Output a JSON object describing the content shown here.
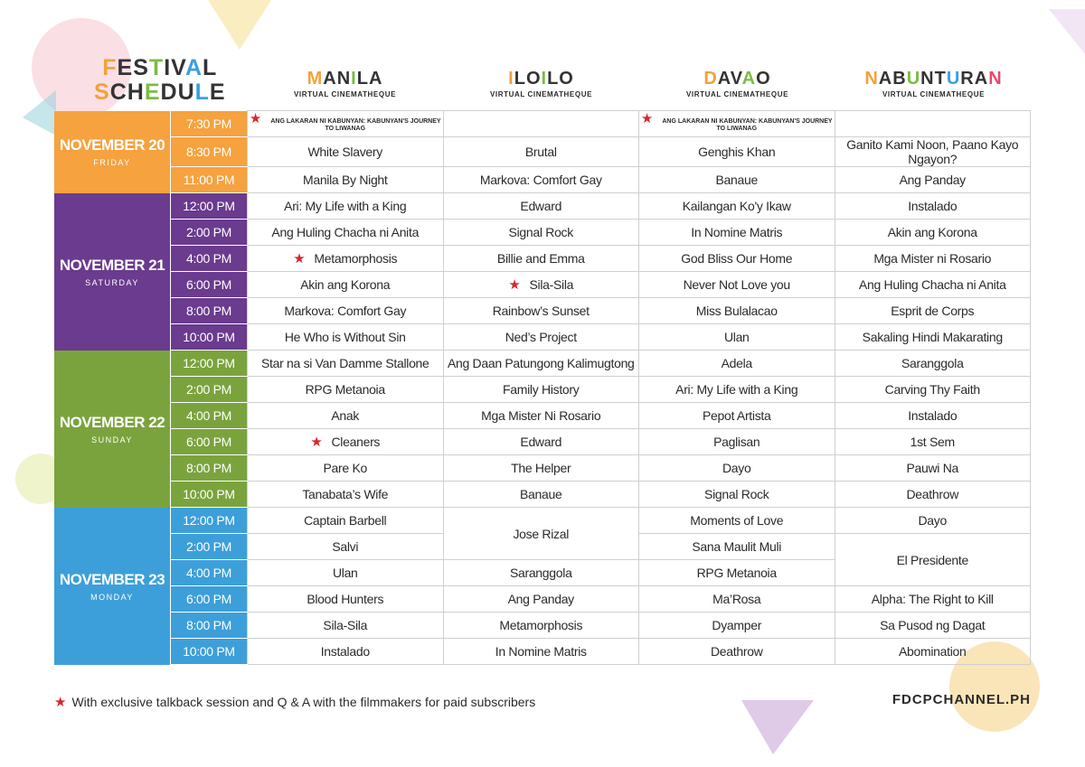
{
  "header": {
    "title": [
      "FESTIVAL",
      "SCHEDULE"
    ],
    "title_colors": [
      "#f2a23a",
      "#7dbb45",
      "#3aa0dc",
      "#e64a6e",
      "#8a4fa3"
    ],
    "venues": [
      {
        "name": "MANILA",
        "subtitle": "VIRTUAL CINEMATHEQUE"
      },
      {
        "name": "ILOILO",
        "subtitle": "VIRTUAL CINEMATHEQUE"
      },
      {
        "name": "DAVAO",
        "subtitle": "VIRTUAL CINEMATHEQUE"
      },
      {
        "name": "NABUNTURAN",
        "subtitle": "VIRTUAL CINEMATHEQUE"
      }
    ]
  },
  "days": [
    {
      "date": "NOVEMBER 20",
      "weekday": "FRIDAY",
      "color": "#f5a23f",
      "slots": [
        {
          "time": "7:30 PM",
          "cells": [
            {
              "title": "ANG LAKARAN NI KABUNYAN: KABUNYAN'S JOURNEY TO LIWANAG",
              "star": true,
              "small": true
            },
            null,
            {
              "title": "ANG LAKARAN NI KABUNYAN: KABUNYAN'S JOURNEY TO LIWANAG",
              "star": true,
              "small": true
            },
            null
          ]
        },
        {
          "time": "8:30 PM",
          "cells": [
            {
              "title": "White Slavery"
            },
            {
              "title": "Brutal"
            },
            {
              "title": "Genghis Khan"
            },
            {
              "title": "Ganito Kami Noon, Paano Kayo Ngayon?",
              "small": false
            }
          ]
        },
        {
          "time": "11:00 PM",
          "cells": [
            {
              "title": "Manila By Night"
            },
            {
              "title": "Markova: Comfort Gay"
            },
            {
              "title": "Banaue"
            },
            {
              "title": "Ang Panday"
            }
          ]
        }
      ]
    },
    {
      "date": "NOVEMBER 21",
      "weekday": "SATURDAY",
      "color": "#6a3b8e",
      "slots": [
        {
          "time": "12:00 PM",
          "cells": [
            {
              "title": "Ari: My Life with a King"
            },
            {
              "title": "Edward"
            },
            {
              "title": "Kailangan Ko'y Ikaw"
            },
            {
              "title": "Instalado"
            }
          ]
        },
        {
          "time": "2:00 PM",
          "cells": [
            {
              "title": "Ang Huling Chacha ni Anita"
            },
            {
              "title": "Signal Rock"
            },
            {
              "title": "In Nomine Matris"
            },
            {
              "title": "Akin ang Korona"
            }
          ]
        },
        {
          "time": "4:00 PM",
          "cells": [
            {
              "title": "Metamorphosis",
              "star": true
            },
            {
              "title": "Billie and Emma"
            },
            {
              "title": "God Bliss Our Home"
            },
            {
              "title": "Mga Mister ni Rosario"
            }
          ]
        },
        {
          "time": "6:00 PM",
          "cells": [
            {
              "title": "Akin ang Korona"
            },
            {
              "title": "Sila-Sila",
              "star": true
            },
            {
              "title": "Never Not Love you"
            },
            {
              "title": "Ang Huling Chacha ni Anita"
            }
          ]
        },
        {
          "time": "8:00 PM",
          "cells": [
            {
              "title": "Markova: Comfort Gay"
            },
            {
              "title": "Rainbow’s Sunset"
            },
            {
              "title": "Miss Bulalacao"
            },
            {
              "title": "Esprit de Corps"
            }
          ]
        },
        {
          "time": "10:00 PM",
          "cells": [
            {
              "title": "He Who is Without Sin"
            },
            {
              "title": "Ned’s Project"
            },
            {
              "title": "Ulan"
            },
            {
              "title": "Sakaling Hindi Makarating"
            }
          ]
        }
      ]
    },
    {
      "date": "NOVEMBER 22",
      "weekday": "SUNDAY",
      "color": "#7ba33d",
      "slots": [
        {
          "time": "12:00 PM",
          "cells": [
            {
              "title": "Star na si Van Damme Stallone"
            },
            {
              "title": "Ang Daan Patungong Kalimugtong"
            },
            {
              "title": "Adela"
            },
            {
              "title": "Saranggola"
            }
          ]
        },
        {
          "time": "2:00 PM",
          "cells": [
            {
              "title": "RPG Metanoia"
            },
            {
              "title": "Family History"
            },
            {
              "title": "Ari: My Life with a King"
            },
            {
              "title": "Carving Thy Faith"
            }
          ]
        },
        {
          "time": "4:00 PM",
          "cells": [
            {
              "title": "Anak"
            },
            {
              "title": "Mga Mister Ni Rosario"
            },
            {
              "title": "Pepot Artista"
            },
            {
              "title": "Instalado"
            }
          ]
        },
        {
          "time": "6:00 PM",
          "cells": [
            {
              "title": "Cleaners",
              "star": true
            },
            {
              "title": "Edward"
            },
            {
              "title": "Paglisan"
            },
            {
              "title": "1st Sem"
            }
          ]
        },
        {
          "time": "8:00 PM",
          "cells": [
            {
              "title": "Pare Ko"
            },
            {
              "title": "The Helper"
            },
            {
              "title": "Dayo"
            },
            {
              "title": "Pauwi Na"
            }
          ]
        },
        {
          "time": "10:00 PM",
          "cells": [
            {
              "title": "Tanabata’s Wife"
            },
            {
              "title": "Banaue"
            },
            {
              "title": "Signal Rock"
            },
            {
              "title": "Deathrow"
            }
          ]
        }
      ]
    },
    {
      "date": "NOVEMBER 23",
      "weekday": "MONDAY",
      "color": "#3d9fd9",
      "slots": [
        {
          "time": "12:00 PM",
          "cells": [
            {
              "title": "Captain Barbell"
            },
            {
              "title": "Jose Rizal",
              "rows": 2
            },
            {
              "title": "Moments of Love"
            },
            {
              "title": "Dayo"
            }
          ]
        },
        {
          "time": "2:00 PM",
          "cells": [
            {
              "title": "Salvi"
            },
            null,
            {
              "title": "Sana Maulit Muli"
            },
            {
              "title": "El Presidente",
              "rows": 2
            }
          ]
        },
        {
          "time": "4:00 PM",
          "cells": [
            {
              "title": "Ulan"
            },
            {
              "title": "Saranggola"
            },
            {
              "title": "RPG Metanoia"
            },
            null
          ]
        },
        {
          "time": "6:00 PM",
          "cells": [
            {
              "title": "Blood Hunters"
            },
            {
              "title": "Ang Panday"
            },
            {
              "title": "Ma’Rosa"
            },
            {
              "title": "Alpha: The Right to Kill"
            }
          ]
        },
        {
          "time": "8:00 PM",
          "cells": [
            {
              "title": "Sila-Sila"
            },
            {
              "title": "Metamorphosis"
            },
            {
              "title": "Dyamper"
            },
            {
              "title": "Sa Pusod ng Dagat"
            }
          ]
        },
        {
          "time": "10:00 PM",
          "cells": [
            {
              "title": "Instalado"
            },
            {
              "title": "In Nomine Matris"
            },
            {
              "title": "Deathrow"
            },
            {
              "title": "Abomination"
            }
          ]
        }
      ]
    }
  ],
  "footer": {
    "note": "With exclusive talkback session and Q & A with the filmmakers for paid subscribers",
    "site": "FDCPCHANNEL.PH"
  }
}
